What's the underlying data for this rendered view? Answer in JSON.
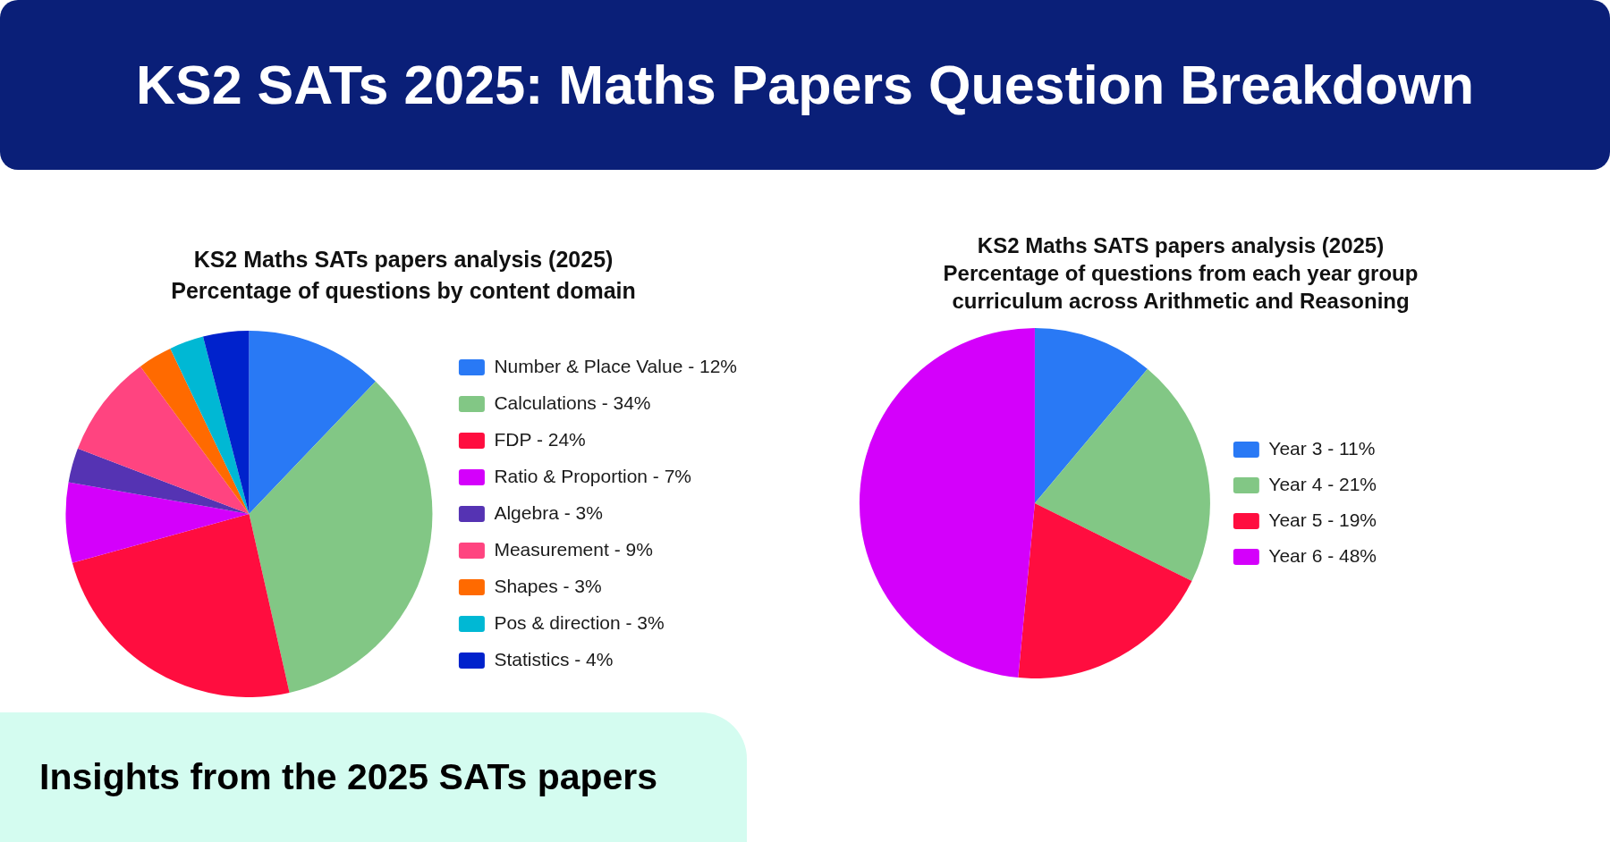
{
  "chart_data": [
    {
      "type": "other",
      "title": "KS2 SATs 2025: Maths Papers Question Breakdown"
    },
    {
      "type": "pie",
      "title": "KS2 Maths SATs papers analysis (2025)",
      "subtitle": "Percentage of questions by content domain",
      "categories": [
        "Number & Place Value - 12%",
        "Calculations - 34%",
        "FDP - 24%",
        "Ratio & Proportion - 7%",
        "Algebra - 3%",
        "Measurement - 9%",
        "Shapes - 3%",
        "Pos & direction - 3%",
        "Statistics - 4%"
      ],
      "values": [
        12,
        34,
        24,
        7,
        3,
        9,
        3,
        3,
        4
      ],
      "colors": [
        "#2979f5",
        "#82c785",
        "#ff0d3f",
        "#d400fb",
        "#5533b3",
        "#ff4480",
        "#ff6a00",
        "#00b8d4",
        "#0022cc"
      ],
      "legend": "right"
    },
    {
      "type": "pie",
      "title": "KS2 Maths SATS papers analysis (2025)",
      "subtitle": "Percentage of questions from each year group curriculum across Arithmetic and Reasoning",
      "categories": [
        "Year 3 - 11%",
        "Year 4 - 21%",
        "Year 5 - 19%",
        "Year 6 - 48%"
      ],
      "values": [
        11,
        21,
        19,
        48
      ],
      "colors": [
        "#2979f5",
        "#82c785",
        "#ff0d3f",
        "#d400fb"
      ],
      "legend": "right"
    },
    {
      "type": "other",
      "title": "Insights from the 2025 SATs papers"
    }
  ]
}
